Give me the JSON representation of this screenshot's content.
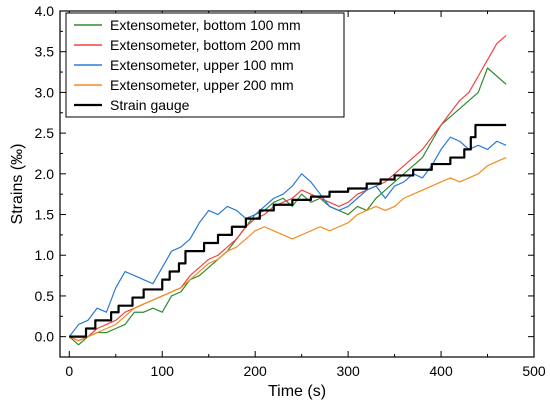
{
  "chart_data": {
    "type": "line",
    "xlabel": "Time (s)",
    "ylabel": "Strains (‰)",
    "xlim": [
      -10,
      500
    ],
    "ylim": [
      -0.25,
      4.0
    ],
    "xticks": [
      0,
      100,
      200,
      300,
      400,
      500
    ],
    "yticks": [
      0.0,
      0.5,
      1.0,
      1.5,
      2.0,
      2.5,
      3.0,
      3.5,
      4.0
    ],
    "xtick_labels": [
      "0",
      "100",
      "200",
      "300",
      "400",
      "500"
    ],
    "ytick_labels": [
      "0.0",
      "0.5",
      "1.0",
      "1.5",
      "2.0",
      "2.5",
      "3.0",
      "3.5",
      "4.0"
    ],
    "grid": false,
    "legend_position": "top-left",
    "series": [
      {
        "name": "Extensometer, bottom 100 mm",
        "color": "#2e8b2e",
        "points": [
          [
            0,
            0.0
          ],
          [
            10,
            -0.1
          ],
          [
            20,
            0.0
          ],
          [
            30,
            0.05
          ],
          [
            40,
            0.05
          ],
          [
            50,
            0.1
          ],
          [
            60,
            0.15
          ],
          [
            70,
            0.3
          ],
          [
            80,
            0.3
          ],
          [
            90,
            0.35
          ],
          [
            100,
            0.3
          ],
          [
            110,
            0.5
          ],
          [
            120,
            0.55
          ],
          [
            130,
            0.7
          ],
          [
            140,
            0.75
          ],
          [
            150,
            0.85
          ],
          [
            160,
            0.95
          ],
          [
            170,
            1.05
          ],
          [
            180,
            1.2
          ],
          [
            190,
            1.35
          ],
          [
            200,
            1.5
          ],
          [
            210,
            1.55
          ],
          [
            220,
            1.65
          ],
          [
            230,
            1.7
          ],
          [
            240,
            1.6
          ],
          [
            250,
            1.75
          ],
          [
            260,
            1.65
          ],
          [
            270,
            1.7
          ],
          [
            280,
            1.6
          ],
          [
            290,
            1.55
          ],
          [
            300,
            1.5
          ],
          [
            310,
            1.6
          ],
          [
            320,
            1.55
          ],
          [
            330,
            1.7
          ],
          [
            340,
            1.8
          ],
          [
            350,
            1.9
          ],
          [
            360,
            2.0
          ],
          [
            370,
            2.1
          ],
          [
            380,
            2.2
          ],
          [
            390,
            2.4
          ],
          [
            400,
            2.6
          ],
          [
            410,
            2.7
          ],
          [
            420,
            2.8
          ],
          [
            430,
            2.9
          ],
          [
            440,
            3.0
          ],
          [
            450,
            3.3
          ],
          [
            460,
            3.2
          ],
          [
            470,
            3.1
          ]
        ]
      },
      {
        "name": "Extensometer, bottom 200 mm",
        "color": "#ee4444",
        "points": [
          [
            0,
            0.0
          ],
          [
            10,
            -0.05
          ],
          [
            20,
            0.0
          ],
          [
            30,
            0.1
          ],
          [
            40,
            0.15
          ],
          [
            50,
            0.2
          ],
          [
            60,
            0.3
          ],
          [
            70,
            0.35
          ],
          [
            80,
            0.4
          ],
          [
            90,
            0.45
          ],
          [
            100,
            0.5
          ],
          [
            110,
            0.55
          ],
          [
            120,
            0.6
          ],
          [
            130,
            0.75
          ],
          [
            140,
            0.85
          ],
          [
            150,
            0.95
          ],
          [
            160,
            1.0
          ],
          [
            170,
            1.1
          ],
          [
            180,
            1.2
          ],
          [
            190,
            1.35
          ],
          [
            200,
            1.45
          ],
          [
            210,
            1.5
          ],
          [
            220,
            1.6
          ],
          [
            230,
            1.65
          ],
          [
            240,
            1.7
          ],
          [
            250,
            1.8
          ],
          [
            260,
            1.75
          ],
          [
            270,
            1.7
          ],
          [
            280,
            1.65
          ],
          [
            290,
            1.6
          ],
          [
            300,
            1.65
          ],
          [
            310,
            1.75
          ],
          [
            320,
            1.8
          ],
          [
            330,
            1.85
          ],
          [
            340,
            1.9
          ],
          [
            350,
            2.0
          ],
          [
            360,
            2.1
          ],
          [
            370,
            2.2
          ],
          [
            380,
            2.3
          ],
          [
            390,
            2.45
          ],
          [
            400,
            2.6
          ],
          [
            410,
            2.75
          ],
          [
            420,
            2.9
          ],
          [
            430,
            3.0
          ],
          [
            440,
            3.2
          ],
          [
            450,
            3.4
          ],
          [
            460,
            3.6
          ],
          [
            470,
            3.7
          ]
        ]
      },
      {
        "name": "Extensometer, upper 100 mm",
        "color": "#2a7ad4",
        "points": [
          [
            0,
            0.0
          ],
          [
            10,
            0.15
          ],
          [
            20,
            0.2
          ],
          [
            30,
            0.35
          ],
          [
            40,
            0.3
          ],
          [
            50,
            0.6
          ],
          [
            60,
            0.8
          ],
          [
            70,
            0.75
          ],
          [
            80,
            0.7
          ],
          [
            90,
            0.65
          ],
          [
            100,
            0.85
          ],
          [
            110,
            1.05
          ],
          [
            120,
            1.1
          ],
          [
            130,
            1.2
          ],
          [
            140,
            1.4
          ],
          [
            150,
            1.55
          ],
          [
            160,
            1.5
          ],
          [
            170,
            1.6
          ],
          [
            180,
            1.55
          ],
          [
            190,
            1.45
          ],
          [
            200,
            1.5
          ],
          [
            210,
            1.6
          ],
          [
            220,
            1.7
          ],
          [
            230,
            1.75
          ],
          [
            240,
            1.85
          ],
          [
            250,
            2.0
          ],
          [
            260,
            1.9
          ],
          [
            270,
            1.75
          ],
          [
            280,
            1.6
          ],
          [
            290,
            1.55
          ],
          [
            300,
            1.6
          ],
          [
            310,
            1.7
          ],
          [
            320,
            1.8
          ],
          [
            330,
            1.85
          ],
          [
            340,
            1.7
          ],
          [
            350,
            1.85
          ],
          [
            360,
            1.9
          ],
          [
            370,
            2.0
          ],
          [
            380,
            1.95
          ],
          [
            390,
            2.1
          ],
          [
            400,
            2.3
          ],
          [
            410,
            2.45
          ],
          [
            420,
            2.4
          ],
          [
            430,
            2.3
          ],
          [
            440,
            2.35
          ],
          [
            450,
            2.3
          ],
          [
            460,
            2.4
          ],
          [
            470,
            2.35
          ]
        ]
      },
      {
        "name": "Extensometer, upper 200 mm",
        "color": "#f28c1e",
        "points": [
          [
            0,
            0.0
          ],
          [
            10,
            -0.05
          ],
          [
            20,
            0.0
          ],
          [
            30,
            0.05
          ],
          [
            40,
            0.1
          ],
          [
            50,
            0.15
          ],
          [
            60,
            0.25
          ],
          [
            70,
            0.35
          ],
          [
            80,
            0.4
          ],
          [
            90,
            0.45
          ],
          [
            100,
            0.5
          ],
          [
            110,
            0.55
          ],
          [
            120,
            0.6
          ],
          [
            130,
            0.7
          ],
          [
            140,
            0.8
          ],
          [
            150,
            0.9
          ],
          [
            160,
            0.95
          ],
          [
            170,
            1.05
          ],
          [
            180,
            1.1
          ],
          [
            190,
            1.2
          ],
          [
            200,
            1.3
          ],
          [
            210,
            1.35
          ],
          [
            220,
            1.3
          ],
          [
            230,
            1.25
          ],
          [
            240,
            1.2
          ],
          [
            250,
            1.25
          ],
          [
            260,
            1.3
          ],
          [
            270,
            1.35
          ],
          [
            280,
            1.3
          ],
          [
            290,
            1.35
          ],
          [
            300,
            1.4
          ],
          [
            310,
            1.5
          ],
          [
            320,
            1.55
          ],
          [
            330,
            1.6
          ],
          [
            340,
            1.55
          ],
          [
            350,
            1.6
          ],
          [
            360,
            1.7
          ],
          [
            370,
            1.75
          ],
          [
            380,
            1.8
          ],
          [
            390,
            1.85
          ],
          [
            400,
            1.9
          ],
          [
            410,
            1.95
          ],
          [
            420,
            1.9
          ],
          [
            430,
            1.95
          ],
          [
            440,
            2.0
          ],
          [
            450,
            2.1
          ],
          [
            460,
            2.15
          ],
          [
            470,
            2.2
          ]
        ]
      },
      {
        "name": "Strain gauge",
        "color": "#000000",
        "width": 2.2,
        "points": [
          [
            0,
            0.0
          ],
          [
            18,
            0.0
          ],
          [
            18,
            0.1
          ],
          [
            28,
            0.1
          ],
          [
            28,
            0.2
          ],
          [
            45,
            0.2
          ],
          [
            45,
            0.3
          ],
          [
            53,
            0.3
          ],
          [
            53,
            0.38
          ],
          [
            68,
            0.38
          ],
          [
            68,
            0.48
          ],
          [
            80,
            0.48
          ],
          [
            80,
            0.58
          ],
          [
            100,
            0.58
          ],
          [
            100,
            0.7
          ],
          [
            108,
            0.7
          ],
          [
            108,
            0.8
          ],
          [
            118,
            0.8
          ],
          [
            118,
            0.9
          ],
          [
            125,
            0.9
          ],
          [
            125,
            1.05
          ],
          [
            145,
            1.05
          ],
          [
            145,
            1.15
          ],
          [
            160,
            1.15
          ],
          [
            160,
            1.25
          ],
          [
            175,
            1.25
          ],
          [
            175,
            1.35
          ],
          [
            190,
            1.35
          ],
          [
            190,
            1.45
          ],
          [
            205,
            1.45
          ],
          [
            205,
            1.55
          ],
          [
            220,
            1.55
          ],
          [
            220,
            1.62
          ],
          [
            240,
            1.62
          ],
          [
            240,
            1.68
          ],
          [
            260,
            1.68
          ],
          [
            260,
            1.72
          ],
          [
            280,
            1.72
          ],
          [
            280,
            1.78
          ],
          [
            300,
            1.78
          ],
          [
            300,
            1.82
          ],
          [
            320,
            1.82
          ],
          [
            320,
            1.88
          ],
          [
            335,
            1.88
          ],
          [
            335,
            1.93
          ],
          [
            350,
            1.93
          ],
          [
            350,
            1.98
          ],
          [
            370,
            1.98
          ],
          [
            370,
            2.05
          ],
          [
            390,
            2.05
          ],
          [
            390,
            2.12
          ],
          [
            410,
            2.12
          ],
          [
            410,
            2.2
          ],
          [
            425,
            2.2
          ],
          [
            425,
            2.3
          ],
          [
            432,
            2.3
          ],
          [
            432,
            2.45
          ],
          [
            437,
            2.45
          ],
          [
            437,
            2.6
          ],
          [
            470,
            2.6
          ]
        ]
      }
    ]
  }
}
